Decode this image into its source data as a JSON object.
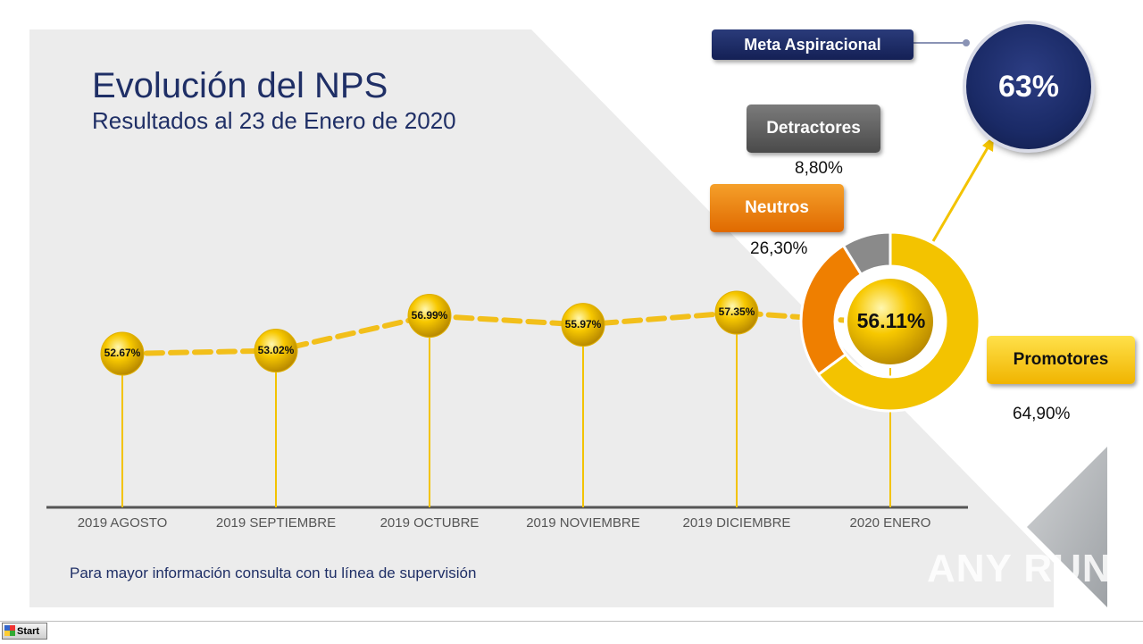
{
  "slide": {
    "title": "Evolución del NPS",
    "subtitle": "Resultados al 23 de Enero de 2020",
    "footer_note": "Para mayor información consulta con tu línea de supervisión"
  },
  "goal": {
    "label": "Meta Aspiracional",
    "value": "63%"
  },
  "breakdown": {
    "detractores": {
      "label": "Detractores",
      "value": "8,80%"
    },
    "neutros": {
      "label": "Neutros",
      "value": "26,30%"
    },
    "promotores": {
      "label": "Promotores",
      "value": "64,90%"
    },
    "center_value": "56.11%"
  },
  "chart_data": [
    {
      "type": "line",
      "categories": [
        "2019 AGOSTO",
        "2019 SEPTIEMBRE",
        "2019 OCTUBRE",
        "2019 NOVIEMBRE",
        "2019 DICIEMBRE",
        "2020 ENERO"
      ],
      "values": [
        52.67,
        53.02,
        56.99,
        55.97,
        57.35,
        56.11
      ],
      "value_labels": [
        "52.67%",
        "53.02%",
        "56.99%",
        "55.97%",
        "57.35%",
        "56.11%"
      ],
      "ylim": [
        50,
        60
      ],
      "colors": {
        "line": "#f2bf1a",
        "marker": "#f7c600",
        "axis": "#555555"
      }
    },
    {
      "type": "pie",
      "donut": true,
      "categories": [
        "Promotores",
        "Neutros",
        "Detractores"
      ],
      "values": [
        64.9,
        26.3,
        8.8
      ],
      "colors": [
        "#f3c300",
        "#ef7f00",
        "#8a8a8a"
      ]
    }
  ],
  "taskbar": {
    "start_label": "Start"
  },
  "watermark": "ANY RUN"
}
